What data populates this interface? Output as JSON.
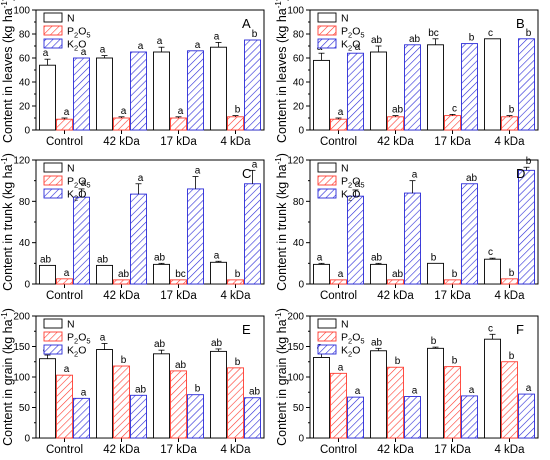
{
  "figure": {
    "n_label": "N",
    "p_label_main": "P",
    "p_label_sub1": "2",
    "p_label_mid": "O",
    "p_label_sub2": "5",
    "k_label_main": "K",
    "k_label_sub": "2",
    "k_label_end": "O",
    "unit_prefix": "(kg ha",
    "unit_exp": "-1",
    "unit_suffix": ")"
  },
  "colors": {
    "n_stroke": "#000000",
    "p_stroke": "#ff3b30",
    "k_stroke": "#2a2ad8"
  },
  "chart_data": [
    {
      "type": "bar",
      "panel_letter": "A",
      "ylabel": "Content in leaves",
      "categories": [
        "Control",
        "42 kDa",
        "17 kDa",
        "4 kDa"
      ],
      "ylim": [
        0,
        100
      ],
      "yticks": [
        0,
        20,
        40,
        60,
        80,
        100
      ],
      "series": [
        {
          "name": "N",
          "values": [
            54,
            60,
            65,
            69
          ],
          "err": [
            5,
            2,
            4,
            4
          ],
          "letters": [
            "a",
            "a",
            "a",
            "a"
          ]
        },
        {
          "name": "P2O5",
          "values": [
            9,
            10,
            10,
            11
          ],
          "err": [
            1,
            1,
            1,
            1
          ],
          "letters": [
            "a",
            "a",
            "a",
            "b"
          ]
        },
        {
          "name": "K2O",
          "values": [
            60,
            65,
            66,
            75
          ],
          "err": [
            0,
            0,
            0,
            0
          ],
          "letters": [
            "a",
            "a",
            "a",
            "b"
          ]
        }
      ]
    },
    {
      "type": "bar",
      "panel_letter": "B",
      "ylabel": "Content in leaves",
      "categories": [
        "Control",
        "42 kDa",
        "17 kDa",
        "4 kDa"
      ],
      "ylim": [
        0,
        100
      ],
      "yticks": [
        0,
        20,
        40,
        60,
        80,
        100
      ],
      "series": [
        {
          "name": "N",
          "values": [
            58,
            65,
            71,
            76
          ],
          "err": [
            6,
            5,
            5,
            0
          ],
          "letters": [
            "a",
            "ab",
            "bc",
            "c"
          ]
        },
        {
          "name": "P2O5",
          "values": [
            9,
            11,
            12,
            11
          ],
          "err": [
            1,
            1,
            1,
            1
          ],
          "letters": [
            "a",
            "ab",
            "c",
            "b"
          ]
        },
        {
          "name": "K2O",
          "values": [
            64,
            71,
            72,
            76
          ],
          "err": [
            0,
            0,
            0,
            0
          ],
          "letters": [
            "a",
            "ab",
            "b",
            "b"
          ]
        }
      ]
    },
    {
      "type": "bar",
      "panel_letter": "C",
      "ylabel": "Content in trunk",
      "categories": [
        "Control",
        "42 kDa",
        "17 kDa",
        "4 kDa"
      ],
      "ylim": [
        0,
        120
      ],
      "yticks": [
        0,
        40,
        80,
        120
      ],
      "series": [
        {
          "name": "N",
          "values": [
            18,
            18,
            19,
            21
          ],
          "err": [
            0,
            0,
            1,
            1
          ],
          "letters": [
            "ab",
            "ab",
            "ab",
            "a"
          ]
        },
        {
          "name": "P2O5",
          "values": [
            5,
            4,
            4,
            4
          ],
          "err": [
            0,
            0,
            0,
            0
          ],
          "letters": [
            "a",
            "ab",
            "bc",
            "b"
          ]
        },
        {
          "name": "K2O",
          "values": [
            84,
            87,
            92,
            97
          ],
          "err": [
            8,
            10,
            12,
            13
          ],
          "letters": [
            "a",
            "a",
            "a",
            "a"
          ]
        }
      ]
    },
    {
      "type": "bar",
      "panel_letter": "D",
      "ylabel": "Content in trunk",
      "categories": [
        "Control",
        "42 kDa",
        "17 kDa",
        "4 kDa"
      ],
      "ylim": [
        0,
        120
      ],
      "yticks": [
        0,
        40,
        80,
        120
      ],
      "series": [
        {
          "name": "N",
          "values": [
            19,
            19,
            20,
            24
          ],
          "err": [
            1,
            1,
            0,
            1
          ],
          "letters": [
            "a",
            "ab",
            "b",
            "c"
          ]
        },
        {
          "name": "P2O5",
          "values": [
            4,
            4,
            4,
            5
          ],
          "err": [
            0,
            0,
            0,
            0
          ],
          "letters": [
            "a",
            "ab",
            "b",
            "b"
          ]
        },
        {
          "name": "K2O",
          "values": [
            85,
            88,
            97,
            110
          ],
          "err": [
            6,
            12,
            0,
            3
          ],
          "letters": [
            "a",
            "a",
            "ab",
            "b"
          ]
        }
      ]
    },
    {
      "type": "bar",
      "panel_letter": "E",
      "ylabel": "Content in grain",
      "categories": [
        "Control",
        "42 kDa",
        "17 kDa",
        "4 kDa"
      ],
      "ylim": [
        0,
        200
      ],
      "yticks": [
        0,
        50,
        100,
        150,
        200
      ],
      "series": [
        {
          "name": "N",
          "values": [
            130,
            145,
            138,
            142
          ],
          "err": [
            6,
            10,
            6,
            4
          ],
          "letters": [
            "a",
            "a",
            "ab",
            "ab"
          ]
        },
        {
          "name": "P2O5",
          "values": [
            103,
            118,
            110,
            115
          ],
          "err": [
            0,
            0,
            0,
            0
          ],
          "letters": [
            "a",
            "b",
            "ab",
            "b"
          ]
        },
        {
          "name": "K2O",
          "values": [
            65,
            70,
            71,
            66
          ],
          "err": [
            0,
            0,
            0,
            0
          ],
          "letters": [
            "a",
            "ab",
            "b",
            "ab"
          ]
        }
      ]
    },
    {
      "type": "bar",
      "panel_letter": "F",
      "ylabel": "Content in grain",
      "categories": [
        "Control",
        "42 kDa",
        "17 kDa",
        "4 kDa"
      ],
      "ylim": [
        0,
        200
      ],
      "yticks": [
        0,
        50,
        100,
        150,
        200
      ],
      "series": [
        {
          "name": "N",
          "values": [
            132,
            143,
            147,
            162
          ],
          "err": [
            8,
            4,
            2,
            8
          ],
          "letters": [
            "a",
            "ab",
            "b",
            "c"
          ]
        },
        {
          "name": "P2O5",
          "values": [
            106,
            116,
            117,
            125
          ],
          "err": [
            0,
            0,
            0,
            0
          ],
          "letters": [
            "a",
            "b",
            "b",
            "b"
          ]
        },
        {
          "name": "K2O",
          "values": [
            67,
            68,
            69,
            72
          ],
          "err": [
            0,
            0,
            0,
            0
          ],
          "letters": [
            "a",
            "a",
            "a",
            "a"
          ]
        }
      ]
    }
  ]
}
